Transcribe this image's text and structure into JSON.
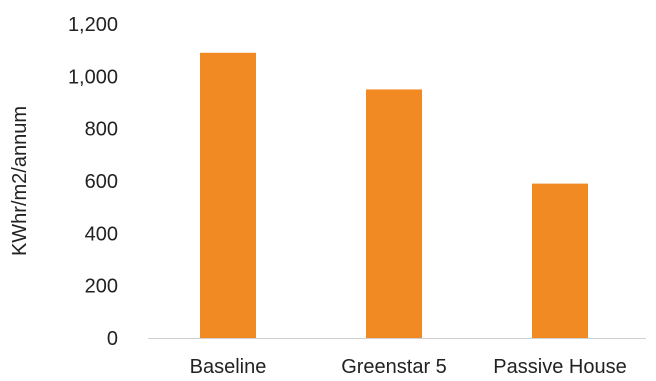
{
  "chart_data": {
    "type": "bar",
    "title": "",
    "xlabel": "",
    "ylabel": "KWhr/m2/annum",
    "categories": [
      "Baseline",
      "Greenstar 5",
      "Passive House"
    ],
    "values": [
      1090,
      950,
      590
    ],
    "ylim": [
      0,
      1200
    ],
    "yticks": [
      0,
      200,
      400,
      600,
      800,
      1000,
      1200
    ],
    "ytick_labels": [
      "0",
      "200",
      "400",
      "600",
      "800",
      "1,000",
      "1,200"
    ],
    "grid": false,
    "legend": "none",
    "bar_color": "#f28a23",
    "axis_color": "#d0d0d0"
  }
}
